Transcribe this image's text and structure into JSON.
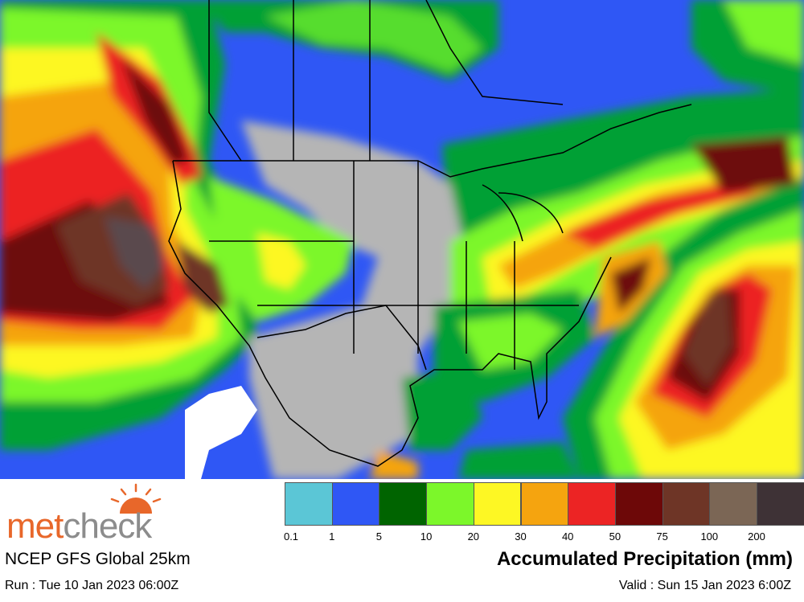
{
  "brand": {
    "part1": "met",
    "part2": "check"
  },
  "model_name": "NCEP GFS Global 25km",
  "run_text": "Run : Tue 10 Jan 2023 06:00Z",
  "product_title": "Accumulated Precipitation (mm)",
  "valid_text": "Valid : Sun 15 Jan 2023 6:00Z",
  "legend": {
    "colors": [
      "#5bc6d6",
      "#2f57f5",
      "#006400",
      "#7cf72a",
      "#fdf724",
      "#f5a40f",
      "#ec2424",
      "#6d0808",
      "#6e3526",
      "#7b6655",
      "#3e3236"
    ],
    "labels": [
      "0.1",
      "1",
      "5",
      "10",
      "20",
      "30",
      "40",
      "50",
      "75",
      "100",
      "200"
    ]
  },
  "map_colors": {
    "ocean": "#2f57f5",
    "dry": "#b5b5b5",
    "light": "#00a036",
    "green": "#7cf72a",
    "yellow": "#fdf724",
    "orange": "#f5a40f",
    "red": "#ec2424",
    "maroon": "#6d0808",
    "brown": "#6e3526",
    "gray": "#5a4a4e",
    "nodata": "#ffffff"
  }
}
